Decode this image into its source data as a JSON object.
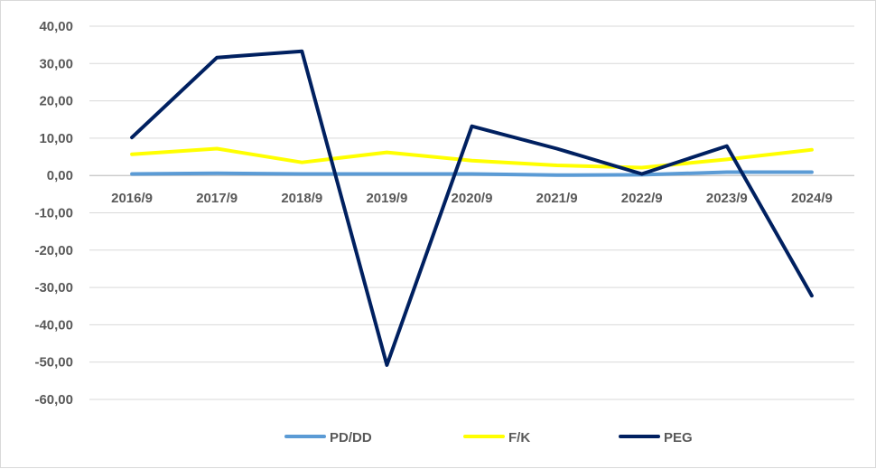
{
  "chart_data": {
    "type": "line",
    "title": "",
    "xlabel": "",
    "ylabel": "",
    "categories": [
      "2016/9",
      "2017/9",
      "2018/9",
      "2019/9",
      "2020/9",
      "2021/9",
      "2022/9",
      "2023/9",
      "2024/9"
    ],
    "ylim": [
      -60,
      40
    ],
    "yticks": [
      40,
      30,
      20,
      10,
      0,
      -10,
      -20,
      -30,
      -40,
      -50,
      -60
    ],
    "ytick_labels": [
      "40,00",
      "30,00",
      "20,00",
      "10,00",
      "0,00",
      "-10,00",
      "-20,00",
      "-30,00",
      "-40,00",
      "-50,00",
      "-60,00"
    ],
    "grid": "horizontal",
    "legend_position": "bottom",
    "series": [
      {
        "name": "PD/DD",
        "color": "#5b9bd5",
        "values": [
          0.4,
          0.6,
          0.4,
          0.4,
          0.4,
          0.1,
          0.2,
          0.9,
          0.9
        ]
      },
      {
        "name": "F/K",
        "color": "#ffff00",
        "values": [
          5.7,
          7.2,
          3.5,
          6.2,
          4.0,
          2.7,
          2.1,
          4.3,
          6.9
        ]
      },
      {
        "name": "PEG",
        "color": "#002060",
        "values": [
          10.2,
          31.6,
          33.3,
          -50.8,
          13.2,
          7.2,
          0.4,
          7.9,
          -32.2
        ]
      }
    ]
  }
}
